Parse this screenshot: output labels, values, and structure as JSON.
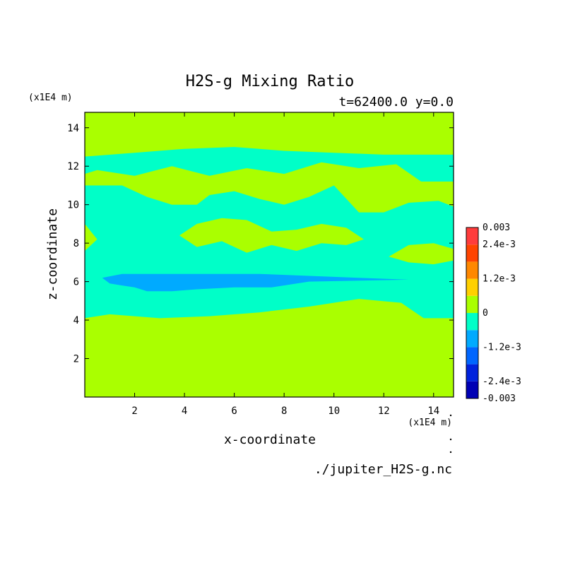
{
  "chart_data": {
    "type": "heatmap",
    "title": "H2S-g Mixing Ratio",
    "subtitle": "t=62400.0 y=0.0",
    "xlabel": "x-coordinate",
    "ylabel": "z-coordinate",
    "x_units": "(x1E4 m)",
    "y_units": "(x1E4 m)",
    "footer": "./jupiter_H2S-g.nc",
    "xlim": [
      0,
      14.8
    ],
    "ylim": [
      0,
      14.8
    ],
    "xticks": [
      2,
      4,
      6,
      8,
      10,
      12,
      14
    ],
    "yticks": [
      2,
      4,
      6,
      8,
      10,
      12,
      14
    ],
    "background_level_color": "#aaff00",
    "colorbar": {
      "levels": [
        -0.003,
        -0.0024,
        -0.0018,
        -0.0012,
        -0.0006,
        0,
        0.0006,
        0.0012,
        0.0018,
        0.0024,
        0.003
      ],
      "colors": [
        "#0000b4",
        "#0022dd",
        "#0066ff",
        "#00aaff",
        "#00ffc8",
        "#aaff00",
        "#ffd000",
        "#ff8800",
        "#ff4400",
        "#ff3c3c"
      ],
      "labels": [
        {
          "value": 0.003,
          "text": "0.003"
        },
        {
          "value": 0.0024,
          "text": "2.4e-3"
        },
        {
          "value": 0.0012,
          "text": "1.2e-3"
        },
        {
          "value": 0,
          "text": "0"
        },
        {
          "value": -0.0012,
          "text": "-1.2e-3"
        },
        {
          "value": -0.0024,
          "text": "-2.4e-3"
        },
        {
          "value": -0.003,
          "text": "-0.003"
        }
      ]
    },
    "regions": [
      {
        "level": "slightly negative",
        "color": "#00ffc8",
        "outline": [
          [
            0,
            4.1
          ],
          [
            1,
            4.3
          ],
          [
            3,
            4.1
          ],
          [
            5,
            4.2
          ],
          [
            7,
            4.4
          ],
          [
            9,
            4.7
          ],
          [
            11,
            5.1
          ],
          [
            12.7,
            4.9
          ],
          [
            13.6,
            4.1
          ],
          [
            14.8,
            4.1
          ],
          [
            14.8,
            9.9
          ],
          [
            14.2,
            10.2
          ],
          [
            13,
            10.1
          ],
          [
            12,
            9.6
          ],
          [
            11,
            9.6
          ],
          [
            10.5,
            10.3
          ],
          [
            10,
            11.0
          ],
          [
            9,
            10.4
          ],
          [
            8,
            10.0
          ],
          [
            7,
            10.3
          ],
          [
            6,
            10.7
          ],
          [
            5,
            10.5
          ],
          [
            4.5,
            10.0
          ],
          [
            3.5,
            10.0
          ],
          [
            2.5,
            10.4
          ],
          [
            1.5,
            11.0
          ],
          [
            0,
            11.0
          ],
          [
            0,
            12.5
          ],
          [
            2,
            12.7
          ],
          [
            4,
            12.9
          ],
          [
            6,
            13.0
          ],
          [
            8,
            12.8
          ],
          [
            10,
            12.7
          ],
          [
            12,
            12.6
          ],
          [
            14.8,
            12.6
          ],
          [
            14.8,
            11.2
          ],
          [
            13.5,
            11.2
          ],
          [
            12.5,
            12.1
          ],
          [
            11,
            11.9
          ],
          [
            9.5,
            12.2
          ],
          [
            8,
            11.6
          ],
          [
            6.5,
            11.9
          ],
          [
            5,
            11.5
          ],
          [
            3.5,
            12.0
          ],
          [
            2,
            11.5
          ],
          [
            0.5,
            11.8
          ],
          [
            0,
            11.6
          ],
          [
            0,
            9.0
          ],
          [
            0.5,
            8.2
          ],
          [
            0,
            7.6
          ]
        ]
      },
      {
        "level": "positive patch",
        "color": "#aaff00",
        "outline": [
          [
            3.8,
            8.4
          ],
          [
            4.5,
            9.0
          ],
          [
            5.5,
            9.3
          ],
          [
            6.5,
            9.2
          ],
          [
            7.5,
            8.6
          ],
          [
            8.5,
            8.7
          ],
          [
            9.5,
            9.0
          ],
          [
            10.5,
            8.8
          ],
          [
            11.2,
            8.2
          ],
          [
            10.5,
            7.9
          ],
          [
            9.5,
            8.0
          ],
          [
            8.5,
            7.6
          ],
          [
            7.5,
            7.9
          ],
          [
            6.5,
            7.5
          ],
          [
            5.5,
            8.1
          ],
          [
            4.5,
            7.8
          ]
        ]
      },
      {
        "level": "positive patch",
        "color": "#aaff00",
        "outline": [
          [
            12.2,
            7.3
          ],
          [
            13,
            7.9
          ],
          [
            14,
            8.0
          ],
          [
            14.8,
            7.7
          ],
          [
            14.8,
            7.1
          ],
          [
            14,
            6.9
          ],
          [
            13,
            7.0
          ]
        ]
      },
      {
        "level": "more negative",
        "color": "#00aaff",
        "outline": [
          [
            0.7,
            6.2
          ],
          [
            1.5,
            6.4
          ],
          [
            4,
            6.4
          ],
          [
            7,
            6.4
          ],
          [
            9,
            6.3
          ],
          [
            11,
            6.2
          ],
          [
            13,
            6.1
          ],
          [
            11,
            6.05
          ],
          [
            9,
            6.0
          ],
          [
            7.5,
            5.7
          ],
          [
            6,
            5.7
          ],
          [
            4.5,
            5.6
          ],
          [
            3.5,
            5.5
          ],
          [
            2.5,
            5.5
          ],
          [
            2,
            5.7
          ],
          [
            1.5,
            5.8
          ],
          [
            1,
            5.9
          ]
        ]
      }
    ]
  }
}
